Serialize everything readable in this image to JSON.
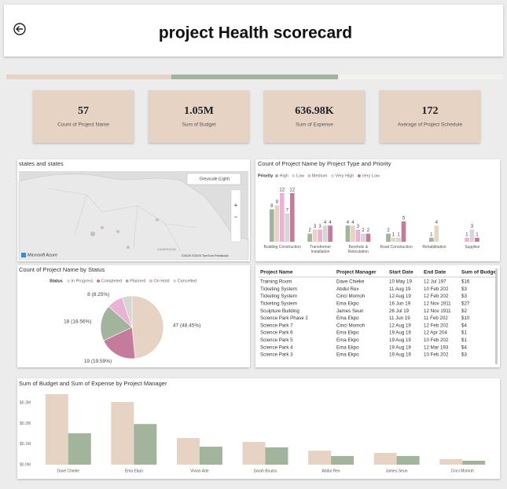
{
  "header": {
    "title": "project Health scorecard"
  },
  "kpis": [
    {
      "value": "57",
      "label": "Count of Project Name"
    },
    {
      "value": "1.05M",
      "label": "Sum of Budget"
    },
    {
      "value": "636.98K",
      "label": "Sum of Expense"
    },
    {
      "value": "172",
      "label": "Average of Project Schedule"
    }
  ],
  "map": {
    "title": "states and states",
    "style": "Greyscale (Light)",
    "brand": "Microsoft Azure",
    "credit": "©2025 ©2025 TomTom Feedback",
    "place": "CAMEROON"
  },
  "chart_data": [
    {
      "type": "bar",
      "title": "Count of Project Name by Project Type and Priority",
      "legend_title": "Priority",
      "categories": [
        "Building Construction",
        "Transformer Installation",
        "Borehole & Reticulation",
        "Road Construction",
        "Rehabilitation",
        "Supplies"
      ],
      "series": [
        {
          "name": "High",
          "color": "#a3b49c",
          "values": [
            8,
            2,
            4,
            2,
            1,
            null
          ]
        },
        {
          "name": "Low",
          "color": "#e6d3c4",
          "values": [
            9,
            3,
            4,
            1,
            4,
            null
          ]
        },
        {
          "name": "Medium",
          "color": "#eab2d4",
          "values": [
            12,
            3,
            3,
            null,
            null,
            1
          ]
        },
        {
          "name": "Very High",
          "color": "#d6d6d6",
          "values": [
            7,
            4,
            2,
            1,
            null,
            3
          ]
        },
        {
          "name": "Very Low",
          "color": "#c57b9c",
          "values": [
            12,
            4,
            2,
            5,
            null,
            1
          ]
        }
      ]
    },
    {
      "type": "pie",
      "title": "Count of Project Name by Status",
      "legend_title": "Status",
      "categories": [
        "In Progress",
        "Completed",
        "Planned",
        "On Hold",
        "Cancelled"
      ],
      "values": [
        47,
        19,
        18,
        8,
        5
      ],
      "value_labels": [
        "47 (48.45%)",
        "19 (19.59%)",
        "18 (18.56%)",
        "8 (8.25%)",
        null
      ],
      "colors": [
        "#e6d3c4",
        "#c57b9c",
        "#a3b49c",
        "#eab2d4",
        "#d6d6d6"
      ]
    },
    {
      "type": "bar",
      "title": "Sum of Budget and Sum of Expense by Project Manager",
      "categories": [
        "Dave Chieke",
        "Ema Ekpo",
        "Vivian Ade",
        "Sarah Boulos",
        "Abdul Rex",
        "James Seun",
        "Cinci Momoh"
      ],
      "series": [
        {
          "color": "#e6d3c4",
          "values": [
            342000,
            304000,
            129000,
            110000,
            68000,
            57000,
            27000
          ]
        },
        {
          "color": "#a3b49c",
          "values": [
            152000,
            197000,
            87000,
            84000,
            42000,
            42000,
            19000
          ]
        }
      ],
      "ylim": [
        0,
        350000
      ],
      "yticks": [
        {
          "value": 0,
          "label": "$0.0M"
        },
        {
          "value": 100000,
          "label": "$0.1M"
        },
        {
          "value": 200000,
          "label": "$0.2M"
        },
        {
          "value": 300000,
          "label": "$0.3M"
        }
      ],
      "grid": false
    }
  ],
  "table": {
    "columns": [
      "Project Name",
      "Project Manager",
      "Start Date",
      "End Date",
      "Sum of Budget"
    ],
    "rows": [
      [
        "Training Room",
        "Dave Chieke",
        "10 May 19",
        "12 Jul 197",
        "$16"
      ],
      [
        "Ticketing System",
        "Abdul Rex",
        "11 Aug 19",
        "10 Feb 202",
        "$3"
      ],
      [
        "Ticketing System",
        "Cinci Momoh",
        "12 Aug 19",
        "12 Feb 202",
        "$3"
      ],
      [
        "Ticketing System",
        "Ema Ekpo",
        "16 Jun 19",
        "12 Nov 1911",
        "$27"
      ],
      [
        "Sculpture Building",
        "James Seun",
        "26 Jul 19",
        "12 Nov 1911",
        "$2"
      ],
      [
        "Science Park Phase 2",
        "Ema Ekpo",
        "11 Jun 19",
        "11 Feb 202",
        "$10"
      ],
      [
        "Science Park 7",
        "Cinci Momoh",
        "12 Aug 19",
        "12 Feb 202",
        "$4"
      ],
      [
        "Science Park 6",
        "Ema Ekpo",
        "19 Aug 19",
        "12 Apr 204",
        "$1"
      ],
      [
        "Science Park 5",
        "Ema Ekpo",
        "19 Aug 19",
        "10 Feb 202",
        "$1"
      ],
      [
        "Science Park 4",
        "Ema Ekpo",
        "19 Aug 19",
        "12 Mar 193",
        "$4"
      ],
      [
        "Science Park 3",
        "Ema Ekpo",
        "19 Aug 19",
        "10 Feb 202",
        "$3"
      ]
    ]
  }
}
